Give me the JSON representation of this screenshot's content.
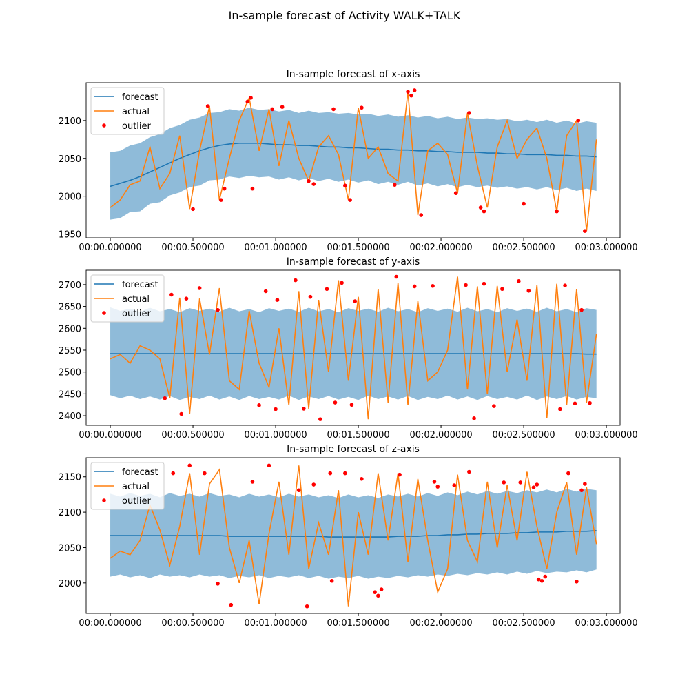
{
  "title": "In-sample forecast of Activity WALK+TALK",
  "chart_data": [
    {
      "type": "line",
      "title": "In-sample forecast of x-axis",
      "legend": "upper left",
      "x": [
        0,
        0.06,
        0.12,
        0.18,
        0.24,
        0.3,
        0.36,
        0.42,
        0.48,
        0.54,
        0.6,
        0.66,
        0.72,
        0.78,
        0.84,
        0.9,
        0.96,
        1.02,
        1.08,
        1.14,
        1.2,
        1.26,
        1.32,
        1.38,
        1.44,
        1.5,
        1.56,
        1.62,
        1.68,
        1.74,
        1.8,
        1.86,
        1.92,
        1.98,
        2.04,
        2.1,
        2.16,
        2.22,
        2.28,
        2.34,
        2.4,
        2.46,
        2.52,
        2.58,
        2.64,
        2.7,
        2.76,
        2.82,
        2.88,
        2.94
      ],
      "xlim": [
        -0.146,
        3.083
      ],
      "xticks": [
        {
          "value": 0,
          "label": "00:00.000000"
        },
        {
          "value": 0.5,
          "label": "00:00.500000"
        },
        {
          "value": 1,
          "label": "00:01.000000"
        },
        {
          "value": 1.5,
          "label": "00:01.500000"
        },
        {
          "value": 2,
          "label": "00:02.000000"
        },
        {
          "value": 2.5,
          "label": "00:02.500000"
        },
        {
          "value": 3,
          "label": "00:03.000000"
        }
      ],
      "ylim": [
        1945,
        2150
      ],
      "yticks": [
        1950,
        2000,
        2050,
        2100
      ],
      "band": {
        "color": "#1f77b4",
        "lower": [
          1969,
          1971,
          1979,
          1980,
          1990,
          1992,
          2001,
          2005,
          2012,
          2014,
          2021,
          2022,
          2026,
          2024,
          2027,
          2025,
          2026,
          2022,
          2025,
          2021,
          2024,
          2020,
          2023,
          2019,
          2022,
          2018,
          2021,
          2016,
          2019,
          2015,
          2019,
          2014,
          2017,
          2013,
          2016,
          2012,
          2015,
          2012,
          2014,
          2011,
          2013,
          2010,
          2012,
          2009,
          2012,
          2008,
          2011,
          2007,
          2010,
          2007
        ],
        "upper": [
          2058,
          2060,
          2067,
          2070,
          2078,
          2082,
          2090,
          2094,
          2101,
          2104,
          2110,
          2111,
          2115,
          2113,
          2117,
          2114,
          2115,
          2112,
          2114,
          2110,
          2113,
          2110,
          2111,
          2109,
          2110,
          2108,
          2109,
          2106,
          2108,
          2105,
          2107,
          2104,
          2106,
          2103,
          2105,
          2102,
          2104,
          2102,
          2103,
          2101,
          2102,
          2099,
          2101,
          2098,
          2101,
          2097,
          2100,
          2096,
          2099,
          2097
        ]
      },
      "series": [
        {
          "name": "forecast",
          "color": "#1f77b4",
          "values": [
            2013,
            2017,
            2021,
            2026,
            2032,
            2038,
            2044,
            2050,
            2055,
            2060,
            2064,
            2067,
            2069,
            2070,
            2070,
            2070,
            2069,
            2068,
            2068,
            2067,
            2067,
            2066,
            2065,
            2065,
            2064,
            2064,
            2063,
            2062,
            2062,
            2061,
            2061,
            2060,
            2060,
            2059,
            2059,
            2058,
            2058,
            2058,
            2057,
            2057,
            2056,
            2056,
            2055,
            2055,
            2055,
            2054,
            2054,
            2053,
            2053,
            2052
          ]
        },
        {
          "name": "actual",
          "color": "#ff7f0e",
          "values": [
            1985,
            1995,
            2015,
            2020,
            2065,
            2010,
            2030,
            2080,
            1983,
            2060,
            2119,
            1995,
            2050,
            2100,
            2130,
            2060,
            2115,
            2040,
            2100,
            2050,
            2020,
            2065,
            2080,
            2055,
            1995,
            2117,
            2050,
            2065,
            2030,
            2020,
            2138,
            1975,
            2060,
            2070,
            2055,
            2004,
            2110,
            2040,
            1985,
            2065,
            2100,
            2050,
            2075,
            2090,
            2050,
            1980,
            2080,
            2100,
            1954,
            2075
          ]
        },
        {
          "name": "outlier",
          "color": "red",
          "x": [
            0.5,
            0.59,
            0.67,
            0.69,
            0.83,
            0.85,
            0.86,
            0.98,
            1.04,
            1.2,
            1.23,
            1.35,
            1.42,
            1.45,
            1.52,
            1.72,
            1.8,
            1.82,
            1.84,
            1.88,
            2.09,
            2.17,
            2.24,
            2.26,
            2.5,
            2.7,
            2.83,
            2.87
          ],
          "values": [
            1983,
            2119,
            1995,
            2010,
            2125,
            2130,
            2010,
            2115,
            2118,
            2020,
            2016,
            2115,
            2014,
            1995,
            2117,
            2015,
            2138,
            2133,
            2140,
            1975,
            2004,
            2110,
            1985,
            1980,
            1990,
            1980,
            2100,
            1954
          ]
        }
      ]
    },
    {
      "type": "line",
      "title": "In-sample forecast of y-axis",
      "legend": "upper left",
      "x": [
        0,
        0.06,
        0.12,
        0.18,
        0.24,
        0.3,
        0.36,
        0.42,
        0.48,
        0.54,
        0.6,
        0.66,
        0.72,
        0.78,
        0.84,
        0.9,
        0.96,
        1.02,
        1.08,
        1.14,
        1.2,
        1.26,
        1.32,
        1.38,
        1.44,
        1.5,
        1.56,
        1.62,
        1.68,
        1.74,
        1.8,
        1.86,
        1.92,
        1.98,
        2.04,
        2.1,
        2.16,
        2.22,
        2.28,
        2.34,
        2.4,
        2.46,
        2.52,
        2.58,
        2.64,
        2.7,
        2.76,
        2.82,
        2.88,
        2.94
      ],
      "xlim": [
        -0.146,
        3.083
      ],
      "xticks": [
        {
          "value": 0,
          "label": "00:00.000000"
        },
        {
          "value": 0.5,
          "label": "00:00.500000"
        },
        {
          "value": 1,
          "label": "00:01.000000"
        },
        {
          "value": 1.5,
          "label": "00:01.500000"
        },
        {
          "value": 2,
          "label": "00:02.000000"
        },
        {
          "value": 2.5,
          "label": "00:02.500000"
        },
        {
          "value": 3,
          "label": "00:03.000000"
        }
      ],
      "ylim": [
        2378,
        2733
      ],
      "yticks": [
        2400,
        2450,
        2500,
        2550,
        2600,
        2650,
        2700
      ],
      "band": {
        "color": "#1f77b4",
        "lower": [
          2447,
          2440,
          2446,
          2438,
          2444,
          2437,
          2445,
          2436,
          2443,
          2438,
          2446,
          2437,
          2444,
          2436,
          2445,
          2438,
          2443,
          2437,
          2446,
          2436,
          2444,
          2438,
          2445,
          2437,
          2443,
          2436,
          2446,
          2438,
          2444,
          2437,
          2445,
          2436,
          2443,
          2438,
          2446,
          2437,
          2444,
          2436,
          2445,
          2438,
          2443,
          2437,
          2446,
          2436,
          2444,
          2438,
          2445,
          2437,
          2443,
          2440
        ],
        "upper": [
          2648,
          2640,
          2645,
          2638,
          2647,
          2639,
          2644,
          2637,
          2646,
          2640,
          2645,
          2638,
          2647,
          2639,
          2644,
          2637,
          2646,
          2640,
          2645,
          2638,
          2647,
          2639,
          2644,
          2637,
          2646,
          2640,
          2645,
          2638,
          2647,
          2639,
          2644,
          2637,
          2646,
          2640,
          2645,
          2638,
          2647,
          2639,
          2644,
          2637,
          2646,
          2640,
          2645,
          2638,
          2647,
          2639,
          2644,
          2637,
          2646,
          2642
        ]
      },
      "series": [
        {
          "name": "forecast",
          "color": "#1f77b4",
          "values": [
            2542,
            2542,
            2542,
            2542,
            2542,
            2542,
            2542,
            2542,
            2542,
            2542,
            2542,
            2542,
            2542,
            2542,
            2542,
            2542,
            2542,
            2542,
            2542,
            2542,
            2542,
            2542,
            2542,
            2542,
            2542,
            2542,
            2542,
            2542,
            2542,
            2542,
            2542,
            2542,
            2542,
            2542,
            2542,
            2542,
            2542,
            2542,
            2542,
            2542,
            2542,
            2542,
            2542,
            2542,
            2542,
            2542,
            2542,
            2542,
            2541,
            2541
          ]
        },
        {
          "name": "actual",
          "color": "#ff7f0e",
          "values": [
            2530,
            2540,
            2520,
            2560,
            2550,
            2530,
            2440,
            2670,
            2404,
            2668,
            2540,
            2692,
            2480,
            2460,
            2640,
            2520,
            2465,
            2600,
            2424,
            2685,
            2416,
            2665,
            2500,
            2710,
            2480,
            2672,
            2392,
            2690,
            2430,
            2704,
            2425,
            2662,
            2480,
            2500,
            2550,
            2718,
            2460,
            2696,
            2450,
            2697,
            2500,
            2620,
            2480,
            2699,
            2394,
            2702,
            2425,
            2690,
            2430,
            2587
          ]
        },
        {
          "name": "outlier",
          "color": "red",
          "x": [
            0.33,
            0.37,
            0.43,
            0.46,
            0.54,
            0.65,
            0.9,
            0.94,
            1.0,
            1.01,
            1.12,
            1.17,
            1.21,
            1.27,
            1.31,
            1.36,
            1.4,
            1.46,
            1.48,
            1.73,
            1.84,
            1.95,
            2.15,
            2.2,
            2.26,
            2.32,
            2.37,
            2.47,
            2.53,
            2.72,
            2.75,
            2.81,
            2.85,
            2.9
          ],
          "values": [
            2440,
            2677,
            2404,
            2668,
            2692,
            2642,
            2424,
            2685,
            2415,
            2665,
            2710,
            2416,
            2672,
            2392,
            2690,
            2430,
            2704,
            2425,
            2662,
            2718,
            2696,
            2697,
            2699,
            2394,
            2702,
            2422,
            2690,
            2708,
            2686,
            2415,
            2698,
            2428,
            2642,
            2429
          ]
        }
      ]
    },
    {
      "type": "line",
      "title": "In-sample forecast of z-axis",
      "legend": "upper left",
      "x": [
        0,
        0.06,
        0.12,
        0.18,
        0.24,
        0.3,
        0.36,
        0.42,
        0.48,
        0.54,
        0.6,
        0.66,
        0.72,
        0.78,
        0.84,
        0.9,
        0.96,
        1.02,
        1.08,
        1.14,
        1.2,
        1.26,
        1.32,
        1.38,
        1.44,
        1.5,
        1.56,
        1.62,
        1.68,
        1.74,
        1.8,
        1.86,
        1.92,
        1.98,
        2.04,
        2.1,
        2.16,
        2.22,
        2.28,
        2.34,
        2.4,
        2.46,
        2.52,
        2.58,
        2.64,
        2.7,
        2.76,
        2.82,
        2.88,
        2.94
      ],
      "xlim": [
        -0.146,
        3.083
      ],
      "xticks": [
        {
          "value": 0,
          "label": "00:00.000000"
        },
        {
          "value": 0.5,
          "label": "00:00.500000"
        },
        {
          "value": 1,
          "label": "00:01.000000"
        },
        {
          "value": 1.5,
          "label": "00:01.500000"
        },
        {
          "value": 2,
          "label": "00:02.000000"
        },
        {
          "value": 2.5,
          "label": "00:02.500000"
        },
        {
          "value": 3,
          "label": "00:03.000000"
        }
      ],
      "ylim": [
        1957,
        2177
      ],
      "yticks": [
        2000,
        2050,
        2100,
        2150
      ],
      "band": {
        "color": "#1f77b4",
        "lower": [
          2009,
          2012,
          2008,
          2011,
          2007,
          2012,
          2009,
          2011,
          2008,
          2012,
          2009,
          2011,
          2007,
          2010,
          2008,
          2011,
          2007,
          2010,
          2008,
          2011,
          2007,
          2010,
          2006,
          2009,
          2007,
          2010,
          2006,
          2009,
          2007,
          2010,
          2008,
          2011,
          2009,
          2012,
          2010,
          2013,
          2011,
          2014,
          2012,
          2015,
          2012,
          2016,
          2013,
          2017,
          2014,
          2016,
          2015,
          2018,
          2015,
          2019
        ],
        "upper": [
          2126,
          2122,
          2127,
          2123,
          2126,
          2121,
          2127,
          2123,
          2126,
          2122,
          2127,
          2123,
          2125,
          2121,
          2126,
          2122,
          2125,
          2121,
          2126,
          2122,
          2125,
          2121,
          2124,
          2120,
          2125,
          2121,
          2124,
          2120,
          2125,
          2122,
          2126,
          2122,
          2127,
          2123,
          2128,
          2124,
          2129,
          2125,
          2130,
          2126,
          2130,
          2127,
          2131,
          2128,
          2132,
          2128,
          2133,
          2129,
          2133,
          2131
        ]
      },
      "series": [
        {
          "name": "forecast",
          "color": "#1f77b4",
          "values": [
            2067,
            2067,
            2067,
            2067,
            2067,
            2067,
            2067,
            2067,
            2067,
            2067,
            2067,
            2067,
            2066,
            2066,
            2066,
            2066,
            2066,
            2066,
            2066,
            2066,
            2066,
            2066,
            2065,
            2065,
            2065,
            2065,
            2065,
            2065,
            2065,
            2066,
            2066,
            2066,
            2067,
            2067,
            2068,
            2068,
            2069,
            2069,
            2070,
            2070,
            2070,
            2071,
            2071,
            2072,
            2072,
            2072,
            2073,
            2073,
            2073,
            2074
          ]
        },
        {
          "name": "actual",
          "color": "#ff7f0e",
          "values": [
            2035,
            2045,
            2040,
            2060,
            2110,
            2075,
            2025,
            2080,
            2155,
            2040,
            2140,
            2160,
            2050,
            2000,
            2060,
            1970,
            2070,
            2143,
            2040,
            2166,
            2020,
            2085,
            2040,
            2131,
            1967,
            2100,
            2040,
            2155,
            2060,
            2155,
            2030,
            2147,
            2060,
            1987,
            2020,
            2153,
            2060,
            2030,
            2143,
            2050,
            2138,
            2060,
            2157,
            2080,
            2020,
            2100,
            2142,
            2040,
            2135,
            2055
          ]
        },
        {
          "name": "outlier",
          "color": "red",
          "x": [
            0.38,
            0.48,
            0.57,
            0.65,
            0.73,
            0.86,
            0.96,
            1.14,
            1.19,
            1.23,
            1.33,
            1.34,
            1.42,
            1.52,
            1.6,
            1.62,
            1.64,
            1.75,
            1.96,
            1.98,
            2.08,
            2.17,
            2.38,
            2.48,
            2.56,
            2.58,
            2.59,
            2.61,
            2.63,
            2.77,
            2.82,
            2.85,
            2.87
          ],
          "values": [
            2155,
            2166,
            2155,
            1999,
            1969,
            2143,
            2166,
            2131,
            1967,
            2139,
            2155,
            2003,
            2155,
            2147,
            1987,
            1982,
            1991,
            2153,
            2143,
            2136,
            2138,
            2157,
            2142,
            2142,
            2135,
            2139,
            2005,
            2003,
            2009,
            2155,
            2002,
            2131,
            2140
          ]
        }
      ]
    }
  ]
}
